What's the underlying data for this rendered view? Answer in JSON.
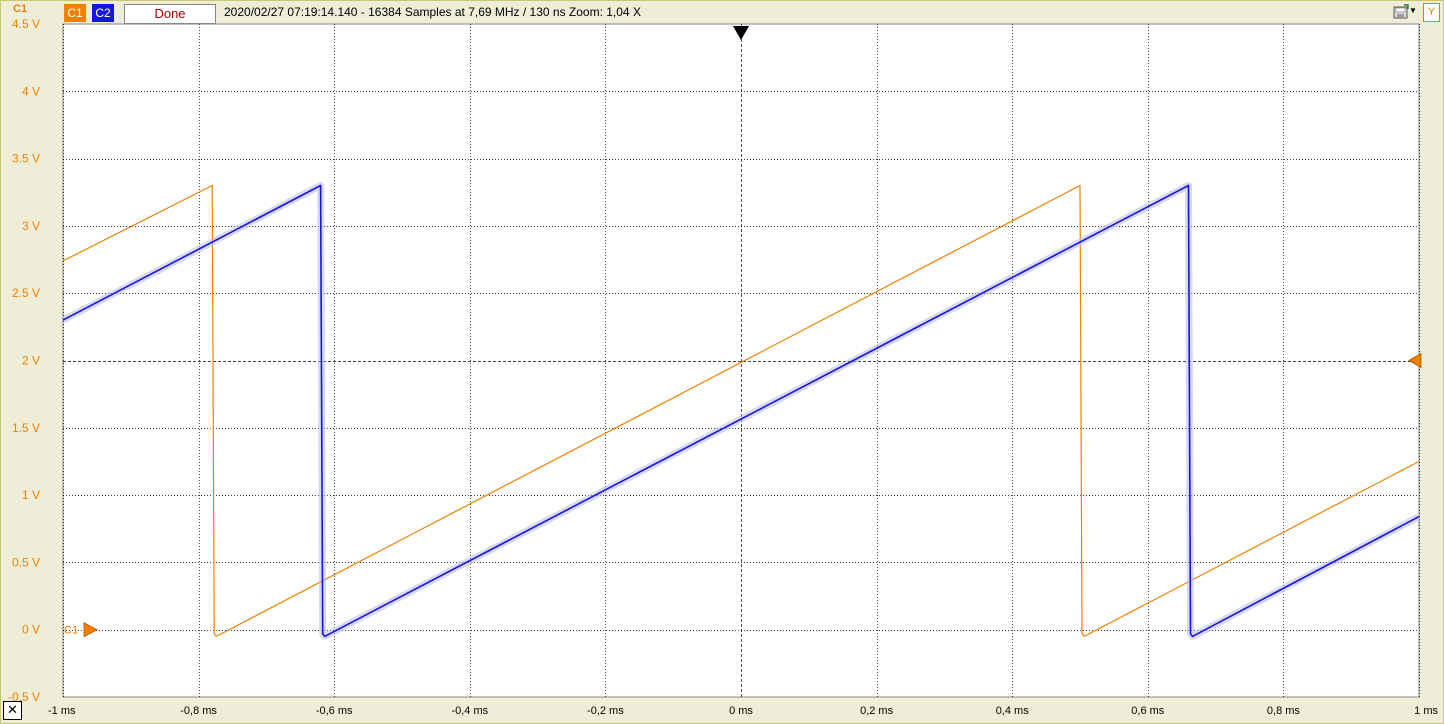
{
  "toolbar": {
    "channel_corner_label": "C1",
    "c1_label": "C1",
    "c2_label": "C2",
    "status_label": "Done",
    "info": "2020/02/27  07:19:14.140 - 16384 Samples at 7,69 MHz / 130 ns  Zoom: 1,04 X",
    "y_label": "Y",
    "close_label": "✕"
  },
  "colors": {
    "c1": "#f08000",
    "c2": "#1515e0",
    "c2_band": "#b8b8f0",
    "grid": "#000000",
    "plot_bg": "#ffffff",
    "panel_bg": "#eeeed8"
  },
  "chart_data": {
    "type": "line",
    "xlim": [
      -1,
      1
    ],
    "ylim": [
      -0.5,
      4.5
    ],
    "x_unit": "ms",
    "y_unit": "V",
    "xticks": [
      -1,
      -0.8,
      -0.6,
      -0.4,
      -0.2,
      0,
      0.2,
      0.4,
      0.6,
      0.8,
      1
    ],
    "xtick_labels": [
      "-1 ms",
      "-0,8 ms",
      "-0,6 ms",
      "-0,4 ms",
      "-0,2 ms",
      "0 ms",
      "0,2 ms",
      "0,4 ms",
      "0,6 ms",
      "0,8 ms",
      "1 ms"
    ],
    "yticks": [
      4.5,
      4,
      3.5,
      3,
      2.5,
      2,
      1.5,
      1,
      0.5,
      0,
      -0.5
    ],
    "ytick_labels": [
      "4.5 V",
      "4 V",
      "3.5 V",
      "3 V",
      "2.5 V",
      "2 V",
      "1.5 V",
      "1 V",
      "0.5 V",
      "0 V",
      "-0.5 V"
    ],
    "grid": true,
    "trigger_marker_label": "C1",
    "trigger_level": 2,
    "series": [
      {
        "name": "C1",
        "points": [
          [
            -1,
            2.74
          ],
          [
            -0.78,
            3.3
          ],
          [
            -0.777,
            -0.03
          ],
          [
            -0.774,
            -0.05
          ],
          [
            0.5,
            3.3
          ],
          [
            0.503,
            -0.03
          ],
          [
            0.506,
            -0.05
          ],
          [
            1,
            1.25
          ]
        ]
      },
      {
        "name": "C2",
        "points": [
          [
            -1,
            2.3
          ],
          [
            -0.62,
            3.3
          ],
          [
            -0.617,
            -0.03
          ],
          [
            -0.614,
            -0.05
          ],
          [
            0.66,
            3.3
          ],
          [
            0.663,
            -0.03
          ],
          [
            0.666,
            -0.05
          ],
          [
            1,
            0.84
          ]
        ]
      }
    ]
  }
}
